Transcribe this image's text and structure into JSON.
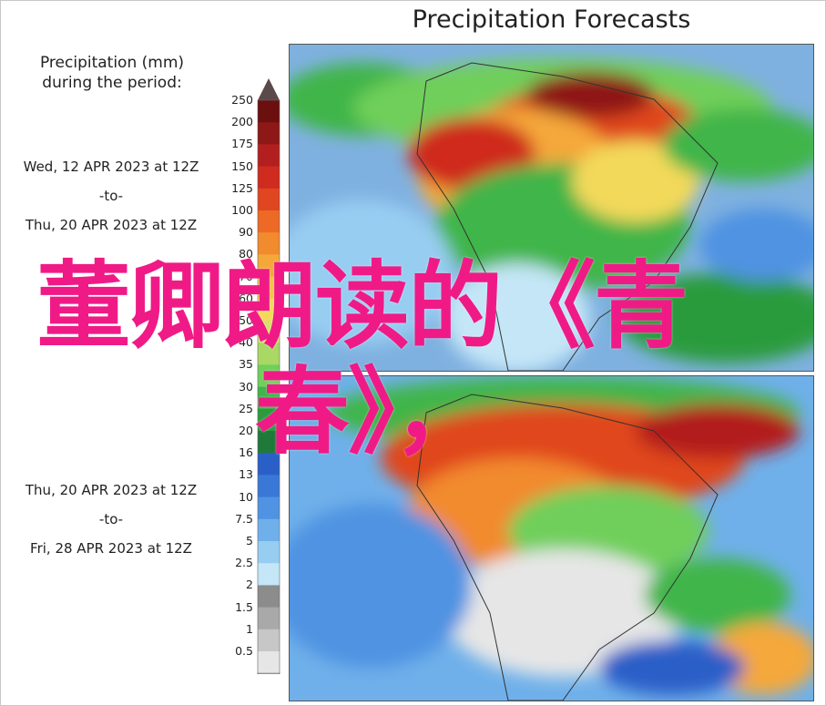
{
  "title": "Precipitation Forecasts",
  "legend": {
    "heading_line1": "Precipitation (mm)",
    "heading_line2": "during the period:",
    "levels": [
      "250",
      "200",
      "175",
      "150",
      "125",
      "100",
      "90",
      "80",
      "70",
      "60",
      "50",
      "40",
      "35",
      "30",
      "25",
      "20",
      "16",
      "13",
      "10",
      "7.5",
      "5",
      "2.5",
      "2",
      "1.5",
      "1",
      "0.5"
    ],
    "colors": [
      "#6b0f0f",
      "#8e1717",
      "#b31f1f",
      "#cf2b1f",
      "#e0461f",
      "#ec6a25",
      "#f28a2e",
      "#f5a83a",
      "#f7c247",
      "#f3d95a",
      "#d7e06a",
      "#a9d964",
      "#6fcf5a",
      "#3fb54a",
      "#2c9b3e",
      "#1f7a3a",
      "#2b5fc8",
      "#3a78d8",
      "#4f93e2",
      "#6fb0ea",
      "#98cdf2",
      "#c4e6f7",
      "#8c8c8c",
      "#a9a9a9",
      "#c7c7c7",
      "#e6e6e6"
    ]
  },
  "periods": [
    {
      "start": "Wed, 12 APR 2023 at 12Z",
      "sep": "-to-",
      "end": "Thu, 20 APR 2023 at 12Z"
    },
    {
      "start": "Thu, 20 APR 2023 at 12Z",
      "sep": "-to-",
      "end": "Fri, 28 APR 2023 at 12Z"
    }
  ],
  "overlay": {
    "line1": "董卿朗读的《青",
    "line2": "春》，"
  }
}
